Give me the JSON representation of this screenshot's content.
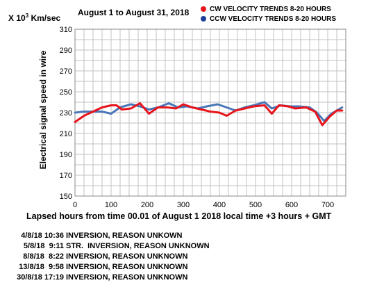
{
  "chart_data": {
    "type": "line",
    "title": "August 1 to August 31, 2018",
    "y_unit_prefix": "X 10",
    "y_unit_exp": "3",
    "y_unit_suffix": " Km/sec",
    "ylabel": "Electrical signal speed in wire",
    "xlabel": "Lapsed hours from time 00.01 of August 1  2018   local time   +3 hours + GMT",
    "xlim": [
      0,
      750
    ],
    "ylim": [
      150,
      310
    ],
    "xticks": [
      0,
      100,
      200,
      300,
      400,
      500,
      600,
      700
    ],
    "yticks": [
      150,
      170,
      190,
      210,
      230,
      250,
      270,
      290,
      310
    ],
    "grid": true,
    "legend_position": "top-right",
    "series": [
      {
        "name": "CW VELOCITY TRENDS 8-20 HOURS",
        "color": "#e8141c",
        "points": [
          [
            0,
            221
          ],
          [
            25,
            227
          ],
          [
            50,
            231
          ],
          [
            75,
            235
          ],
          [
            100,
            237
          ],
          [
            115,
            237
          ],
          [
            130,
            233
          ],
          [
            155,
            234
          ],
          [
            180,
            239
          ],
          [
            205,
            229
          ],
          [
            230,
            235
          ],
          [
            255,
            235
          ],
          [
            280,
            234
          ],
          [
            300,
            238
          ],
          [
            325,
            235
          ],
          [
            350,
            233
          ],
          [
            375,
            231
          ],
          [
            400,
            230
          ],
          [
            420,
            227
          ],
          [
            445,
            232
          ],
          [
            470,
            234
          ],
          [
            495,
            236
          ],
          [
            525,
            237
          ],
          [
            545,
            229
          ],
          [
            565,
            237
          ],
          [
            590,
            236
          ],
          [
            610,
            234
          ],
          [
            640,
            235
          ],
          [
            665,
            231
          ],
          [
            685,
            218
          ],
          [
            705,
            226
          ],
          [
            725,
            232
          ],
          [
            740,
            232
          ]
        ]
      },
      {
        "name": "CCW VELOCITY TRENDS 8-20 HOURS",
        "color": "#4a76b8",
        "points": [
          [
            0,
            230
          ],
          [
            25,
            231
          ],
          [
            50,
            231
          ],
          [
            75,
            231
          ],
          [
            100,
            229
          ],
          [
            125,
            235
          ],
          [
            155,
            238
          ],
          [
            180,
            236
          ],
          [
            205,
            233
          ],
          [
            230,
            235
          ],
          [
            260,
            239
          ],
          [
            285,
            235
          ],
          [
            310,
            236
          ],
          [
            340,
            234
          ],
          [
            365,
            236
          ],
          [
            395,
            238
          ],
          [
            420,
            235
          ],
          [
            445,
            232
          ],
          [
            470,
            235
          ],
          [
            495,
            237
          ],
          [
            525,
            240
          ],
          [
            545,
            234
          ],
          [
            570,
            237
          ],
          [
            595,
            236
          ],
          [
            620,
            236
          ],
          [
            650,
            235
          ],
          [
            670,
            230
          ],
          [
            690,
            222
          ],
          [
            710,
            229
          ],
          [
            740,
            235
          ]
        ]
      }
    ]
  },
  "notes": [
    {
      "date": "4/8/18 10:36",
      "text": "INVERSION, REASON UNKOWN"
    },
    {
      "date": "5/8/18  9:11",
      "text": "STR.  INVERSION, REASON UNKNOWN"
    },
    {
      "date": "8/8/18  8:22",
      "text": "INVERSION, REASON UNKNOWN"
    },
    {
      "date": "13/8/18  9:58",
      "text": "INVERSION, REASON UNKNOWN"
    },
    {
      "date": "30/8/18 17:19",
      "text": "INVERSION, REASON UNKNOWN"
    }
  ]
}
